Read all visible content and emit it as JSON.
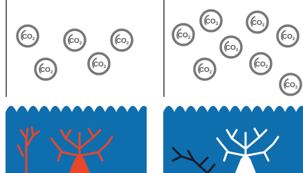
{
  "panels": [
    {
      "molecules": [
        {
          "label": "CO",
          "sub": "2"
        },
        {
          "label": "CO",
          "sub": "2"
        },
        {
          "label": "CO",
          "sub": "2"
        },
        {
          "label": "CO",
          "sub": "2"
        },
        {
          "label": "CO",
          "sub": "2"
        }
      ]
    },
    {
      "molecules": [
        {
          "label": "CO",
          "sub": "2"
        },
        {
          "label": "CO",
          "sub": "2"
        },
        {
          "label": "CO",
          "sub": "2"
        },
        {
          "label": "CO",
          "sub": "2"
        },
        {
          "label": "CO",
          "sub": "2"
        },
        {
          "label": "CO",
          "sub": "2"
        },
        {
          "label": "CO",
          "sub": "2"
        },
        {
          "label": "CO",
          "sub": "2"
        }
      ]
    }
  ]
}
